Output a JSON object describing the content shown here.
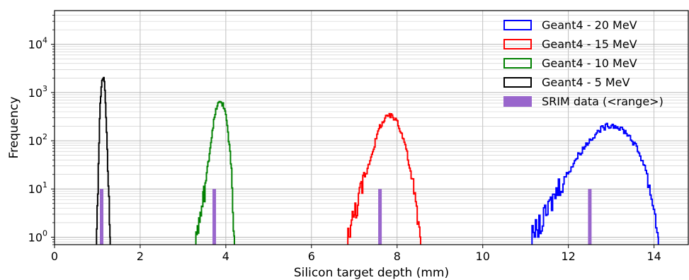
{
  "chart_data": {
    "type": "histogram",
    "title": "",
    "xlabel": "Silicon target depth (mm)",
    "ylabel": "Frequency",
    "xlim": [
      0,
      14.8
    ],
    "ylim": [
      0.7,
      50000
    ],
    "yscale": "log",
    "grid": true,
    "grid_minor": true,
    "legend_position": "top-right",
    "x_ticks": [
      {
        "value": 0,
        "label": "0"
      },
      {
        "value": 2,
        "label": "2"
      },
      {
        "value": 4,
        "label": "4"
      },
      {
        "value": 6,
        "label": "6"
      },
      {
        "value": 8,
        "label": "8"
      },
      {
        "value": 10,
        "label": "10"
      },
      {
        "value": 12,
        "label": "12"
      },
      {
        "value": 14,
        "label": "14"
      }
    ],
    "y_ticks": [
      {
        "value": 1,
        "base": "10",
        "exp": "0"
      },
      {
        "value": 10,
        "base": "10",
        "exp": "1"
      },
      {
        "value": 100,
        "base": "10",
        "exp": "2"
      },
      {
        "value": 1000,
        "base": "10",
        "exp": "3"
      },
      {
        "value": 10000,
        "base": "10",
        "exp": "4"
      }
    ],
    "series": [
      {
        "name": "Geant4 - 20 MeV",
        "color": "#0000ff",
        "kind": "step",
        "x": [
          11.15,
          11.4,
          11.6,
          11.8,
          12.0,
          12.2,
          12.4,
          12.6,
          12.8,
          13.0,
          13.2,
          13.4,
          13.6,
          13.8,
          14.0,
          14.1
        ],
        "y": [
          1,
          2,
          5,
          12,
          22,
          45,
          80,
          130,
          185,
          215,
          190,
          135,
          70,
          28,
          4,
          1
        ]
      },
      {
        "name": "Geant4 - 15 MeV",
        "color": "#ff0000",
        "kind": "step",
        "x": [
          6.85,
          7.0,
          7.2,
          7.4,
          7.6,
          7.8,
          8.0,
          8.2,
          8.4,
          8.55
        ],
        "y": [
          1,
          3,
          12,
          50,
          200,
          340,
          270,
          80,
          8,
          1
        ]
      },
      {
        "name": "Geant4 - 10 MeV",
        "color": "#008000",
        "kind": "step",
        "x": [
          3.3,
          3.45,
          3.6,
          3.7,
          3.8,
          3.9,
          4.0,
          4.1,
          4.2
        ],
        "y": [
          1,
          4,
          40,
          200,
          550,
          650,
          380,
          60,
          1
        ]
      },
      {
        "name": "Geant4 - 5 MeV",
        "color": "#000000",
        "kind": "step",
        "x": [
          0.98,
          1.02,
          1.06,
          1.1,
          1.14,
          1.18,
          1.22,
          1.26,
          1.3
        ],
        "y": [
          1,
          20,
          400,
          1600,
          2100,
          1200,
          150,
          8,
          1
        ]
      },
      {
        "name": "SRIM data (<range>)",
        "color": "#9966cc",
        "kind": "bar",
        "x": [
          1.1,
          3.73,
          7.6,
          12.5
        ],
        "y": [
          10,
          10,
          10,
          10
        ]
      }
    ]
  }
}
